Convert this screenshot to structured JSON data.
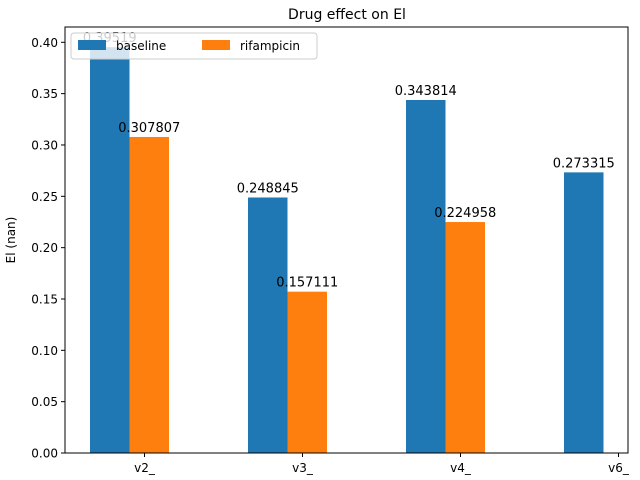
{
  "chart_data": {
    "type": "bar",
    "title": "Drug effect on El",
    "xlabel": "",
    "ylabel": "El (nan)",
    "categories": [
      "v2_",
      "v3_",
      "v4_",
      "v6_"
    ],
    "series": [
      {
        "name": "baseline",
        "color": "#1f77b4",
        "values": [
          0.39519,
          0.248845,
          0.343814,
          0.273315
        ],
        "labels": [
          "0.39519",
          "0.248845",
          "0.343814",
          "0.273315"
        ]
      },
      {
        "name": "rifampicin",
        "color": "#ff7f0e",
        "values": [
          0.307807,
          0.157111,
          0.224958,
          null
        ],
        "labels": [
          "0.307807",
          "0.157111",
          "0.224958",
          ""
        ]
      }
    ],
    "ylim": [
      0,
      0.4149
    ],
    "yticks": [
      0.0,
      0.05,
      0.1,
      0.15,
      0.2,
      0.25,
      0.3,
      0.35,
      0.4
    ],
    "ytick_labels": [
      "0.00",
      "0.05",
      "0.10",
      "0.15",
      "0.20",
      "0.25",
      "0.30",
      "0.35",
      "0.40"
    ],
    "grid": false,
    "legend": "top-left"
  }
}
